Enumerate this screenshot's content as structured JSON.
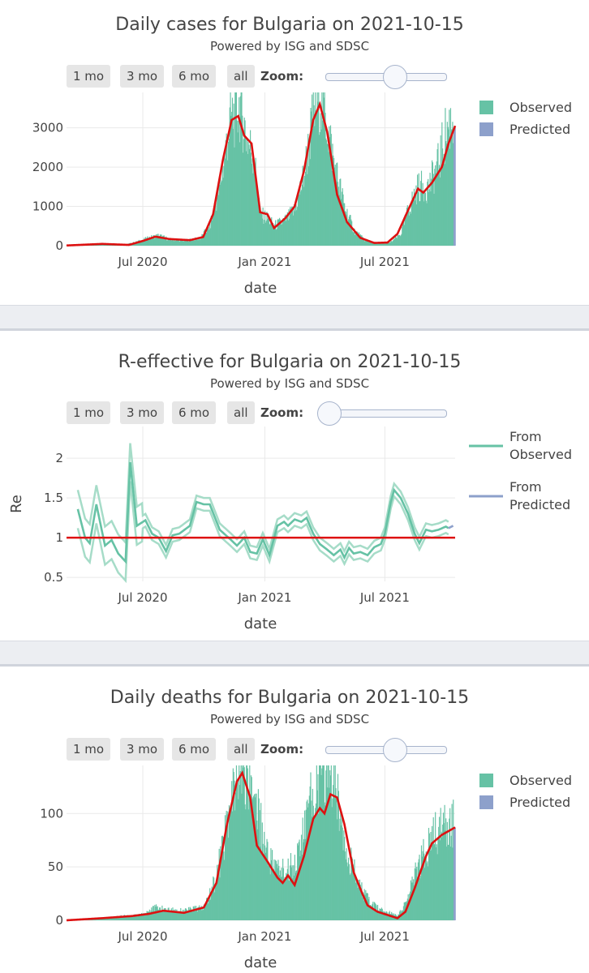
{
  "buttons": {
    "m1": "1 mo",
    "m3": "3 mo",
    "m6": "6 mo",
    "all": "all",
    "zoom": "Zoom:"
  },
  "colors": {
    "observed": "#66c2a5",
    "predicted": "#8da0cb",
    "trend": "#dd1111",
    "grid": "#e9e9e9"
  },
  "panels": [
    {
      "title": "Daily cases for Bulgaria on 2021-10-15",
      "subtitle": "Powered by ISG and SDSC",
      "xlabel": "date",
      "slider_value": 0.55
    },
    {
      "title": "R-effective for Bulgaria on 2021-10-15",
      "subtitle": "Powered by ISG and SDSC",
      "xlabel": "date",
      "ylabel": "Re",
      "slider_value": 0.0
    },
    {
      "title": "Daily deaths for Bulgaria on 2021-10-15",
      "subtitle": "Powered by ISG and SDSC",
      "xlabel": "date",
      "slider_value": 0.55
    }
  ],
  "chart_data": [
    {
      "type": "bar",
      "title": "Daily cases for Bulgaria on 2021-10-15",
      "subtitle": "Powered by ISG and SDSC",
      "xlabel": "date",
      "ylabel": "",
      "x_range": [
        "2020-03-08",
        "2021-10-15"
      ],
      "ylim": [
        0,
        3900
      ],
      "yticks": [
        0,
        1000,
        2000,
        3000
      ],
      "yticklabels": [
        "0",
        "1000",
        "2000",
        "3000"
      ],
      "xticks": [
        "2020-07-01",
        "2021-01-01",
        "2021-07-01"
      ],
      "xticklabels": [
        "Jul 2020",
        "Jan 2021",
        "Jul 2021"
      ],
      "grid": true,
      "legend": "top-right",
      "legend_labels": [
        "Observed",
        "Predicted"
      ],
      "predicted_from": "2021-10-13",
      "series": [
        {
          "name": "Observed",
          "kind": "bar",
          "anchors": [
            [
              "2020-03-08",
              5
            ],
            [
              "2020-04-01",
              30
            ],
            [
              "2020-05-01",
              60
            ],
            [
              "2020-06-01",
              15
            ],
            [
              "2020-06-20",
              90
            ],
            [
              "2020-07-10",
              200
            ],
            [
              "2020-07-25",
              260
            ],
            [
              "2020-08-10",
              160
            ],
            [
              "2020-09-01",
              130
            ],
            [
              "2020-09-25",
              180
            ],
            [
              "2020-10-10",
              500
            ],
            [
              "2020-10-25",
              1500
            ],
            [
              "2020-11-10",
              3200
            ],
            [
              "2020-11-25",
              3600
            ],
            [
              "2020-12-05",
              2700
            ],
            [
              "2020-12-15",
              2300
            ],
            [
              "2020-12-25",
              800
            ],
            [
              "2021-01-05",
              700
            ],
            [
              "2021-01-15",
              500
            ],
            [
              "2021-02-01",
              650
            ],
            [
              "2021-02-15",
              900
            ],
            [
              "2021-03-01",
              1800
            ],
            [
              "2021-03-15",
              3300
            ],
            [
              "2021-03-25",
              3900
            ],
            [
              "2021-04-05",
              3100
            ],
            [
              "2021-04-15",
              2100
            ],
            [
              "2021-05-01",
              1000
            ],
            [
              "2021-05-15",
              400
            ],
            [
              "2021-06-01",
              130
            ],
            [
              "2021-06-20",
              60
            ],
            [
              "2021-07-10",
              90
            ],
            [
              "2021-07-25",
              300
            ],
            [
              "2021-08-05",
              900
            ],
            [
              "2021-08-20",
              1500
            ],
            [
              "2021-09-05",
              1500
            ],
            [
              "2021-09-20",
              2100
            ],
            [
              "2021-10-01",
              2900
            ],
            [
              "2021-10-12",
              3300
            ]
          ]
        },
        {
          "name": "Predicted",
          "kind": "bar",
          "anchors": [
            [
              "2021-10-13",
              2900
            ],
            [
              "2021-10-15",
              3000
            ]
          ]
        },
        {
          "name": "trend",
          "kind": "line",
          "anchors": [
            [
              "2020-03-08",
              5
            ],
            [
              "2020-05-01",
              45
            ],
            [
              "2020-06-10",
              20
            ],
            [
              "2020-07-01",
              120
            ],
            [
              "2020-07-20",
              230
            ],
            [
              "2020-08-10",
              170
            ],
            [
              "2020-09-10",
              140
            ],
            [
              "2020-09-30",
              220
            ],
            [
              "2020-10-15",
              800
            ],
            [
              "2020-10-30",
              2200
            ],
            [
              "2020-11-12",
              3200
            ],
            [
              "2020-11-22",
              3300
            ],
            [
              "2020-12-01",
              2800
            ],
            [
              "2020-12-12",
              2600
            ],
            [
              "2020-12-25",
              850
            ],
            [
              "2021-01-05",
              800
            ],
            [
              "2021-01-15",
              450
            ],
            [
              "2021-02-01",
              700
            ],
            [
              "2021-02-15",
              1000
            ],
            [
              "2021-03-01",
              1900
            ],
            [
              "2021-03-15",
              3200
            ],
            [
              "2021-03-25",
              3600
            ],
            [
              "2021-04-05",
              2900
            ],
            [
              "2021-04-20",
              1300
            ],
            [
              "2021-05-05",
              600
            ],
            [
              "2021-05-25",
              200
            ],
            [
              "2021-06-15",
              70
            ],
            [
              "2021-07-05",
              80
            ],
            [
              "2021-07-20",
              300
            ],
            [
              "2021-08-05",
              900
            ],
            [
              "2021-08-20",
              1450
            ],
            [
              "2021-08-28",
              1350
            ],
            [
              "2021-09-10",
              1600
            ],
            [
              "2021-09-25",
              2000
            ],
            [
              "2021-10-05",
              2600
            ],
            [
              "2021-10-15",
              3050
            ]
          ]
        }
      ]
    },
    {
      "type": "line",
      "title": "R-effective for Bulgaria on 2021-10-15",
      "subtitle": "Powered by ISG and SDSC",
      "xlabel": "date",
      "ylabel": "Re",
      "x_range": [
        "2020-03-08",
        "2021-10-15"
      ],
      "ylim": [
        0.45,
        2.4
      ],
      "yticks": [
        0.5,
        1,
        1.5,
        2
      ],
      "yticklabels": [
        "0.5",
        "1",
        "1.5",
        "2"
      ],
      "xticks": [
        "2020-07-01",
        "2021-01-01",
        "2021-07-01"
      ],
      "xticklabels": [
        "Jul 2020",
        "Jan 2021",
        "Jul 2021"
      ],
      "grid": true,
      "legend": "top-right",
      "legend_labels": [
        "From Observed",
        "From Predicted"
      ],
      "reference_line": 1,
      "series": [
        {
          "name": "From Observed",
          "anchors": [
            [
              "2020-03-25",
              1.36
            ],
            [
              "2020-04-05",
              1.0
            ],
            [
              "2020-04-12",
              0.93
            ],
            [
              "2020-04-22",
              1.42
            ],
            [
              "2020-05-05",
              0.9
            ],
            [
              "2020-05-15",
              0.97
            ],
            [
              "2020-05-25",
              0.8
            ],
            [
              "2020-06-05",
              0.7
            ],
            [
              "2020-06-12",
              1.95
            ],
            [
              "2020-06-22",
              1.15
            ],
            [
              "2020-07-05",
              1.22
            ],
            [
              "2020-07-15",
              1.05
            ],
            [
              "2020-07-25",
              1.0
            ],
            [
              "2020-08-05",
              0.83
            ],
            [
              "2020-08-15",
              1.03
            ],
            [
              "2020-08-25",
              1.05
            ],
            [
              "2020-09-10",
              1.15
            ],
            [
              "2020-09-20",
              1.45
            ],
            [
              "2020-10-01",
              1.42
            ],
            [
              "2020-10-10",
              1.42
            ],
            [
              "2020-10-25",
              1.1
            ],
            [
              "2020-11-10",
              0.98
            ],
            [
              "2020-11-20",
              0.9
            ],
            [
              "2020-12-01",
              1.0
            ],
            [
              "2020-12-10",
              0.82
            ],
            [
              "2020-12-20",
              0.8
            ],
            [
              "2020-12-29",
              0.98
            ],
            [
              "2021-01-08",
              0.78
            ],
            [
              "2021-01-20",
              1.15
            ],
            [
              "2021-01-30",
              1.2
            ],
            [
              "2021-02-05",
              1.15
            ],
            [
              "2021-02-15",
              1.23
            ],
            [
              "2021-02-25",
              1.2
            ],
            [
              "2021-03-05",
              1.25
            ],
            [
              "2021-03-15",
              1.05
            ],
            [
              "2021-03-25",
              0.92
            ],
            [
              "2021-04-05",
              0.85
            ],
            [
              "2021-04-15",
              0.78
            ],
            [
              "2021-04-25",
              0.85
            ],
            [
              "2021-05-01",
              0.75
            ],
            [
              "2021-05-08",
              0.87
            ],
            [
              "2021-05-15",
              0.8
            ],
            [
              "2021-05-25",
              0.82
            ],
            [
              "2021-06-05",
              0.78
            ],
            [
              "2021-06-15",
              0.88
            ],
            [
              "2021-06-25",
              0.92
            ],
            [
              "2021-07-01",
              1.05
            ],
            [
              "2021-07-10",
              1.45
            ],
            [
              "2021-07-15",
              1.6
            ],
            [
              "2021-07-25",
              1.5
            ],
            [
              "2021-08-05",
              1.3
            ],
            [
              "2021-08-15",
              1.05
            ],
            [
              "2021-08-22",
              0.93
            ],
            [
              "2021-09-01",
              1.1
            ],
            [
              "2021-09-10",
              1.08
            ],
            [
              "2021-09-20",
              1.1
            ],
            [
              "2021-10-01",
              1.14
            ],
            [
              "2021-10-05",
              1.12
            ]
          ],
          "band_half_width": 0.08
        },
        {
          "name": "From Predicted",
          "anchors": [
            [
              "2021-10-05",
              1.12
            ],
            [
              "2021-10-12",
              1.15
            ]
          ]
        }
      ]
    },
    {
      "type": "bar",
      "title": "Daily deaths for Bulgaria on 2021-10-15",
      "subtitle": "Powered by ISG and SDSC",
      "xlabel": "date",
      "ylabel": "",
      "x_range": [
        "2020-03-08",
        "2021-10-15"
      ],
      "ylim": [
        0,
        145
      ],
      "yticks": [
        0,
        50,
        100
      ],
      "yticklabels": [
        "0",
        "50",
        "100"
      ],
      "xticks": [
        "2020-07-01",
        "2021-01-01",
        "2021-07-01"
      ],
      "xticklabels": [
        "Jul 2020",
        "Jan 2021",
        "Jul 2021"
      ],
      "grid": true,
      "legend": "top-right",
      "legend_labels": [
        "Observed",
        "Predicted"
      ],
      "predicted_from": "2021-10-13",
      "series": [
        {
          "name": "Observed",
          "kind": "bar",
          "anchors": [
            [
              "2020-03-08",
              0
            ],
            [
              "2020-04-01",
              1
            ],
            [
              "2020-05-01",
              2
            ],
            [
              "2020-06-01",
              4
            ],
            [
              "2020-07-01",
              6
            ],
            [
              "2020-07-20",
              12
            ],
            [
              "2020-08-05",
              10
            ],
            [
              "2020-09-01",
              9
            ],
            [
              "2020-10-01",
              12
            ],
            [
              "2020-10-20",
              40
            ],
            [
              "2020-11-05",
              90
            ],
            [
              "2020-11-20",
              130
            ],
            [
              "2020-12-05",
              145
            ],
            [
              "2020-12-20",
              110
            ],
            [
              "2021-01-01",
              70
            ],
            [
              "2021-01-15",
              50
            ],
            [
              "2021-02-01",
              45
            ],
            [
              "2021-02-20",
              60
            ],
            [
              "2021-03-10",
              110
            ],
            [
              "2021-03-25",
              135
            ],
            [
              "2021-04-10",
              140
            ],
            [
              "2021-04-25",
              100
            ],
            [
              "2021-05-10",
              55
            ],
            [
              "2021-05-25",
              30
            ],
            [
              "2021-06-10",
              15
            ],
            [
              "2021-07-01",
              8
            ],
            [
              "2021-07-20",
              5
            ],
            [
              "2021-08-01",
              15
            ],
            [
              "2021-08-20",
              50
            ],
            [
              "2021-09-05",
              70
            ],
            [
              "2021-09-20",
              85
            ],
            [
              "2021-10-12",
              95
            ]
          ]
        },
        {
          "name": "Predicted",
          "kind": "bar",
          "anchors": [
            [
              "2021-10-13",
              85
            ],
            [
              "2021-10-15",
              87
            ]
          ]
        },
        {
          "name": "trend",
          "kind": "line",
          "anchors": [
            [
              "2020-03-08",
              0
            ],
            [
              "2020-05-01",
              2
            ],
            [
              "2020-06-15",
              4
            ],
            [
              "2020-07-10",
              6
            ],
            [
              "2020-08-01",
              9
            ],
            [
              "2020-09-01",
              7
            ],
            [
              "2020-10-01",
              12
            ],
            [
              "2020-10-20",
              35
            ],
            [
              "2020-11-05",
              90
            ],
            [
              "2020-11-20",
              130
            ],
            [
              "2020-11-28",
              138
            ],
            [
              "2020-12-10",
              115
            ],
            [
              "2020-12-20",
              70
            ],
            [
              "2021-01-05",
              55
            ],
            [
              "2021-01-20",
              40
            ],
            [
              "2021-01-28",
              35
            ],
            [
              "2021-02-05",
              42
            ],
            [
              "2021-02-15",
              33
            ],
            [
              "2021-03-01",
              60
            ],
            [
              "2021-03-15",
              95
            ],
            [
              "2021-03-25",
              105
            ],
            [
              "2021-04-01",
              100
            ],
            [
              "2021-04-10",
              118
            ],
            [
              "2021-04-20",
              115
            ],
            [
              "2021-05-01",
              90
            ],
            [
              "2021-05-15",
              45
            ],
            [
              "2021-05-28",
              25
            ],
            [
              "2021-06-05",
              14
            ],
            [
              "2021-06-20",
              8
            ],
            [
              "2021-07-05",
              5
            ],
            [
              "2021-07-20",
              2
            ],
            [
              "2021-08-01",
              8
            ],
            [
              "2021-08-15",
              30
            ],
            [
              "2021-09-01",
              60
            ],
            [
              "2021-09-10",
              72
            ],
            [
              "2021-09-25",
              80
            ],
            [
              "2021-10-15",
              87
            ]
          ]
        }
      ]
    }
  ]
}
